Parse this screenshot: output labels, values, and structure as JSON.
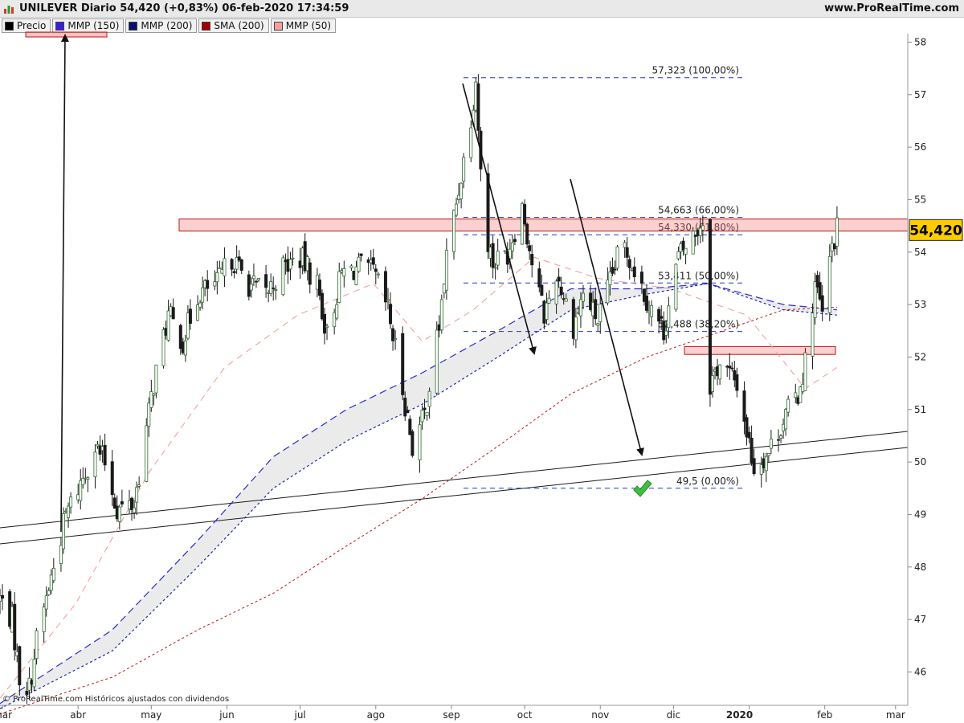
{
  "header": {
    "title": "UNILEVER Diario 54,420 (+0,83%) 06-feb-2020 17:34:59",
    "brand": "www.ProRealTime.com"
  },
  "legend": [
    {
      "label": "Precio",
      "color": "#000000"
    },
    {
      "label": "MMP (150)",
      "color": "#3a1fd8"
    },
    {
      "label": "MMP (200)",
      "color": "#0a1070"
    },
    {
      "label": "SMA (200)",
      "color": "#a00000"
    },
    {
      "label": "MMP (50)",
      "color": "#f5a0a0"
    }
  ],
  "footer": {
    "note": "© ProRealTime.com Históricos ajustados con dividendos"
  },
  "chart_data": {
    "type": "candlestick",
    "title": "UNILEVER Diario",
    "last_price": "54,420",
    "xlabel": "",
    "ylabel": "",
    "x_ticks": [
      "mar",
      "abr",
      "may",
      "jun",
      "jul",
      "ago",
      "sep",
      "oct",
      "nov",
      "dic",
      "2020",
      "feb",
      "mar"
    ],
    "y_ticks": [
      "46",
      "47",
      "48",
      "49",
      "50",
      "51",
      "52",
      "53",
      "54",
      "55",
      "56",
      "57",
      "58"
    ],
    "ylim": [
      45.3,
      58.5
    ],
    "close_path": [
      [
        "2019-02-28",
        47.4
      ],
      [
        "2019-03-05",
        47.0
      ],
      [
        "2019-03-08",
        45.9
      ],
      [
        "2019-03-12",
        45.7
      ],
      [
        "2019-03-15",
        46.6
      ],
      [
        "2019-03-20",
        47.6
      ],
      [
        "2019-03-27",
        49.0
      ],
      [
        "2019-04-02",
        49.6
      ],
      [
        "2019-04-08",
        50.3
      ],
      [
        "2019-04-12",
        50.0
      ],
      [
        "2019-04-17",
        49.1
      ],
      [
        "2019-04-24",
        49.2
      ],
      [
        "2019-05-02",
        51.5
      ],
      [
        "2019-05-08",
        52.8
      ],
      [
        "2019-05-14",
        52.3
      ],
      [
        "2019-05-20",
        53.2
      ],
      [
        "2019-05-28",
        53.4
      ],
      [
        "2019-06-03",
        53.9
      ],
      [
        "2019-06-10",
        53.4
      ],
      [
        "2019-06-17",
        53.2
      ],
      [
        "2019-06-24",
        53.7
      ],
      [
        "2019-07-01",
        53.9
      ],
      [
        "2019-07-08",
        53.4
      ],
      [
        "2019-07-12",
        52.4
      ],
      [
        "2019-07-18",
        53.6
      ],
      [
        "2019-07-25",
        53.7
      ],
      [
        "2019-07-31",
        53.6
      ],
      [
        "2019-08-06",
        52.9
      ],
      [
        "2019-08-12",
        51.4
      ],
      [
        "2019-08-16",
        50.3
      ],
      [
        "2019-08-21",
        50.9
      ],
      [
        "2019-08-27",
        52.6
      ],
      [
        "2019-08-30",
        53.9
      ],
      [
        "2019-09-04",
        55.2
      ],
      [
        "2019-09-09",
        56.6
      ],
      [
        "2019-09-11",
        57.3
      ],
      [
        "2019-09-14",
        54.6
      ],
      [
        "2019-09-18",
        53.8
      ],
      [
        "2019-09-24",
        54.0
      ],
      [
        "2019-09-30",
        54.9
      ],
      [
        "2019-10-04",
        53.8
      ],
      [
        "2019-10-09",
        52.8
      ],
      [
        "2019-10-14",
        53.6
      ],
      [
        "2019-10-21",
        52.6
      ],
      [
        "2019-10-25",
        53.2
      ],
      [
        "2019-10-31",
        52.7
      ],
      [
        "2019-11-05",
        53.4
      ],
      [
        "2019-11-10",
        54.2
      ],
      [
        "2019-11-15",
        53.7
      ],
      [
        "2019-11-21",
        53.0
      ],
      [
        "2019-11-27",
        52.5
      ],
      [
        "2019-12-03",
        53.9
      ],
      [
        "2019-12-09",
        54.3
      ],
      [
        "2019-12-13",
        54.6
      ],
      [
        "2019-12-16",
        51.5
      ],
      [
        "2019-12-20",
        51.9
      ],
      [
        "2019-12-27",
        51.5
      ],
      [
        "2020-01-03",
        49.9
      ],
      [
        "2020-01-09",
        50.2
      ],
      [
        "2020-01-15",
        50.8
      ],
      [
        "2020-01-21",
        51.3
      ],
      [
        "2020-01-24",
        51.9
      ],
      [
        "2020-01-28",
        53.4
      ],
      [
        "2020-01-31",
        52.8
      ],
      [
        "2020-02-04",
        54.1
      ],
      [
        "2020-02-06",
        54.42
      ]
    ],
    "moving_averages": {
      "MMP (150)": [
        [
          "2019-02-28",
          45.4
        ],
        [
          "2019-04-15",
          46.8
        ],
        [
          "2019-05-20",
          48.5
        ],
        [
          "2019-06-20",
          50.1
        ],
        [
          "2019-07-20",
          51.0
        ],
        [
          "2019-08-20",
          51.7
        ],
        [
          "2019-09-20",
          52.5
        ],
        [
          "2019-10-20",
          53.3
        ],
        [
          "2019-11-20",
          53.3
        ],
        [
          "2019-12-15",
          53.4
        ],
        [
          "2020-01-15",
          53.0
        ],
        [
          "2020-02-06",
          52.9
        ]
      ],
      "MMP (200)": [
        [
          "2019-02-28",
          45.3
        ],
        [
          "2019-04-15",
          46.4
        ],
        [
          "2019-05-20",
          48.0
        ],
        [
          "2019-06-20",
          49.5
        ],
        [
          "2019-07-20",
          50.4
        ],
        [
          "2019-08-20",
          51.1
        ],
        [
          "2019-09-20",
          52.0
        ],
        [
          "2019-10-20",
          52.9
        ],
        [
          "2019-11-20",
          53.2
        ],
        [
          "2019-12-15",
          53.4
        ],
        [
          "2020-01-15",
          52.9
        ],
        [
          "2020-02-06",
          52.8
        ]
      ],
      "SMA (200)": [
        [
          "2019-02-28",
          45.2
        ],
        [
          "2019-04-15",
          45.9
        ],
        [
          "2019-05-20",
          46.8
        ],
        [
          "2019-06-20",
          47.5
        ],
        [
          "2019-07-20",
          48.4
        ],
        [
          "2019-08-20",
          49.3
        ],
        [
          "2019-09-20",
          50.3
        ],
        [
          "2019-10-20",
          51.3
        ],
        [
          "2019-11-20",
          52.0
        ],
        [
          "2019-12-15",
          52.4
        ],
        [
          "2020-01-15",
          52.9
        ],
        [
          "2020-02-06",
          52.95
        ]
      ],
      "MMP (50)": [
        [
          "2019-02-28",
          45.5
        ],
        [
          "2019-03-31",
          47.3
        ],
        [
          "2019-04-30",
          49.8
        ],
        [
          "2019-05-31",
          51.8
        ],
        [
          "2019-06-30",
          52.8
        ],
        [
          "2019-07-31",
          53.4
        ],
        [
          "2019-08-20",
          52.3
        ],
        [
          "2019-09-10",
          52.9
        ],
        [
          "2019-10-05",
          53.9
        ],
        [
          "2019-10-31",
          53.5
        ],
        [
          "2019-11-30",
          53.3
        ],
        [
          "2019-12-31",
          52.8
        ],
        [
          "2020-01-24",
          51.4
        ],
        [
          "2020-02-06",
          51.8
        ]
      ]
    },
    "fibonacci": [
      {
        "level": 57.323,
        "label": "57,323 (100,00%)"
      },
      {
        "level": 54.663,
        "label": "54,663 (66,00%)"
      },
      {
        "level": 54.33,
        "label": "54,330 (61,80%)"
      },
      {
        "level": 53.411,
        "label": "53,411 (50,00%)"
      },
      {
        "level": 52.488,
        "label": "52,488 (38,20%)"
      },
      {
        "level": 49.5,
        "label": "49,5 (0,00%)"
      }
    ],
    "zones": [
      {
        "from": 54.4,
        "to": 54.63
      },
      {
        "from": 52.05,
        "to": 52.2
      }
    ]
  }
}
